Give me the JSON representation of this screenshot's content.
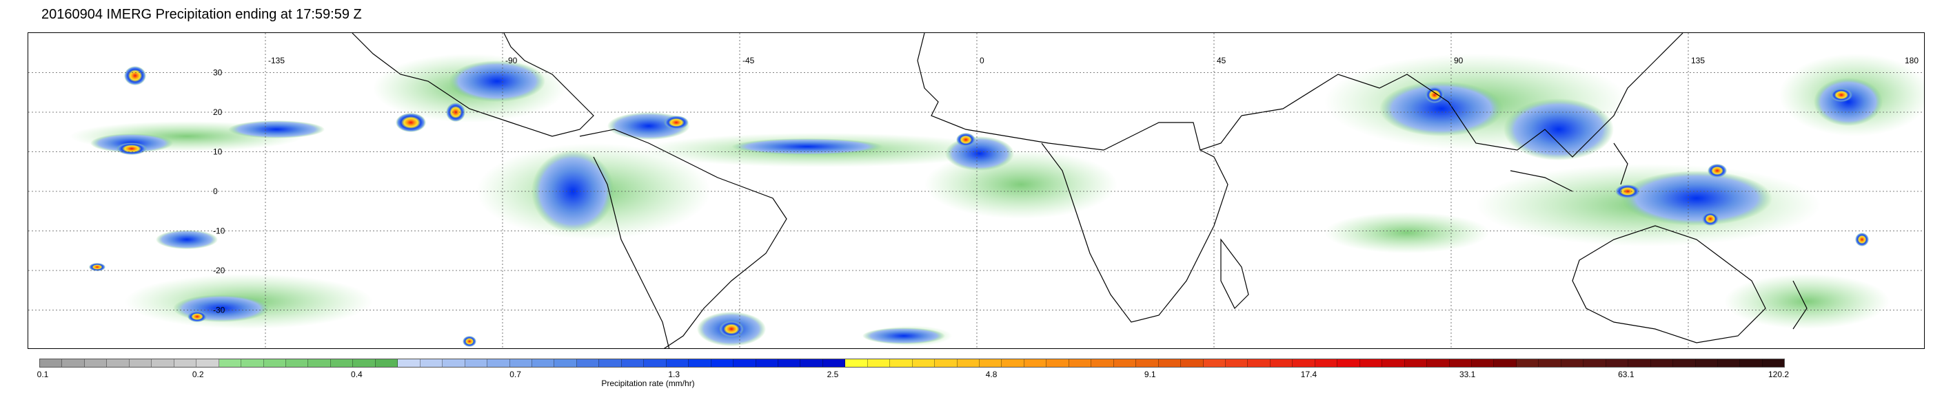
{
  "title": "20160904 IMERG Precipitation ending at 17:59:59 Z",
  "map": {
    "type": "precipitation-map",
    "projection": "equirectangular",
    "lon_range": [
      -180,
      180
    ],
    "lat_range": [
      -40,
      40
    ],
    "lat_labels": [
      "30",
      "20",
      "10",
      "0",
      "-10",
      "-20",
      "-30"
    ],
    "lat_values": [
      30,
      20,
      10,
      0,
      -10,
      -20,
      -30
    ],
    "lon_labels": [
      "-135",
      "-90",
      "-45",
      "0",
      "45",
      "90",
      "135",
      "180"
    ],
    "lon_values": [
      -135,
      -90,
      -45,
      0,
      45,
      90,
      135,
      180
    ],
    "gridlines": "dotted",
    "coastlines": true
  },
  "colorbar": {
    "title": "Precipitation rate (mm/hr)",
    "tick_labels": [
      "0.1",
      "0.2",
      "0.4",
      "0.7",
      "1.3",
      "2.5",
      "4.8",
      "9.1",
      "17.4",
      "33.1",
      "63.1",
      "120.2"
    ],
    "segment_colors": [
      "#9b9b9b",
      "#a4a4a4",
      "#adadad",
      "#b5b5b5",
      "#bdbdbd",
      "#c4c4c4",
      "#cbcbcb",
      "#d2d2d2",
      "#95e08f",
      "#8ddb87",
      "#84d57e",
      "#7bce76",
      "#73c86e",
      "#6ac166",
      "#62bb5f",
      "#59b457",
      "#c7d6f5",
      "#b8ccf3",
      "#a9c2f1",
      "#9ab8ef",
      "#8baeed",
      "#7ca4eb",
      "#6d9ae9",
      "#5e90e7",
      "#4a7be5",
      "#3c6ee6",
      "#2f61e8",
      "#2255ea",
      "#1448ec",
      "#073cee",
      "#0030f0",
      "#0026e8",
      "#001fe0",
      "#0018d8",
      "#0012d0",
      "#000ccc",
      "#ffff33",
      "#fff22e",
      "#ffe52a",
      "#ffd826",
      "#ffcb22",
      "#ffbe1e",
      "#ffb11a",
      "#ffa416",
      "#ff9a14",
      "#fb8f13",
      "#f78512",
      "#f37a11",
      "#ef7010",
      "#eb660f",
      "#e75c0e",
      "#e3520d",
      "#f04b1c",
      "#ee4019",
      "#ec3516",
      "#ea2a13",
      "#e81f10",
      "#e6140d",
      "#e4090a",
      "#d80707",
      "#c80606",
      "#b80505",
      "#a80404",
      "#980303",
      "#880202",
      "#780101",
      "#6a1a12",
      "#641812",
      "#5e1612",
      "#581412",
      "#521212",
      "#4c1010",
      "#461010",
      "#400f0f",
      "#3a0e0e",
      "#340d0d",
      "#2f0c0c",
      "#2a0b0b"
    ]
  }
}
